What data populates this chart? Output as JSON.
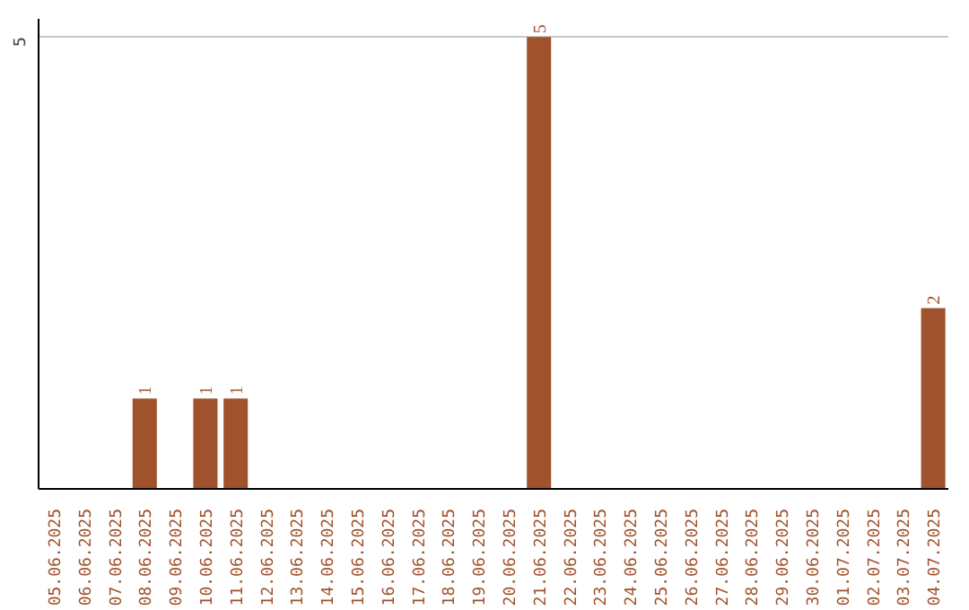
{
  "chart_data": {
    "type": "bar",
    "categories": [
      "05.06.2025",
      "06.06.2025",
      "07.06.2025",
      "08.06.2025",
      "09.06.2025",
      "10.06.2025",
      "11.06.2025",
      "12.06.2025",
      "13.06.2025",
      "14.06.2025",
      "15.06.2025",
      "16.06.2025",
      "17.06.2025",
      "18.06.2025",
      "19.06.2025",
      "20.06.2025",
      "21.06.2025",
      "22.06.2025",
      "23.06.2025",
      "24.06.2025",
      "25.06.2025",
      "26.06.2025",
      "27.06.2025",
      "28.06.2025",
      "29.06.2025",
      "30.06.2025",
      "01.07.2025",
      "02.07.2025",
      "03.07.2025",
      "04.07.2025"
    ],
    "values": [
      0,
      0,
      0,
      1,
      0,
      1,
      1,
      0,
      0,
      0,
      0,
      0,
      0,
      0,
      0,
      0,
      5,
      0,
      0,
      0,
      0,
      0,
      0,
      0,
      0,
      0,
      0,
      0,
      0,
      2
    ],
    "value_labels": [
      null,
      null,
      null,
      "1",
      null,
      "1",
      "1",
      null,
      null,
      null,
      null,
      null,
      null,
      null,
      null,
      null,
      "5",
      null,
      null,
      null,
      null,
      null,
      null,
      null,
      null,
      null,
      null,
      null,
      null,
      "2"
    ],
    "color": "#a0522d",
    "ylim": [
      0,
      5.2
    ],
    "yticks": [
      5
    ],
    "grid": "y"
  }
}
